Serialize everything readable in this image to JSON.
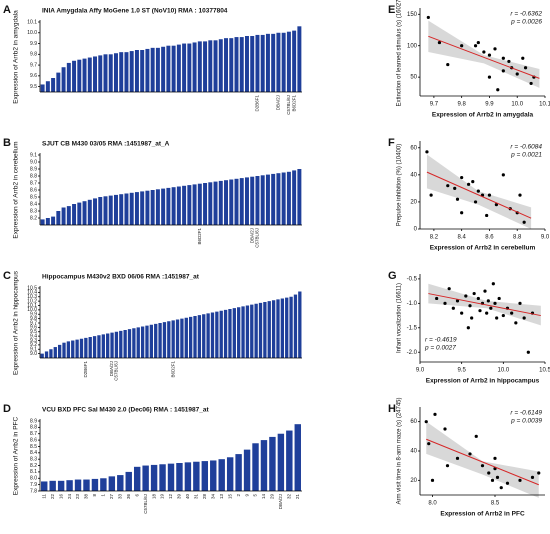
{
  "chart_data": [
    {
      "type": "bar",
      "label": "A",
      "title": "INIA Amygdala Affy MoGene 1.0 ST (NoV10) RMA : 10377804",
      "ylabel": "Expression of Arrb2 in amygdala",
      "color": "#1f3f9a",
      "categories": [
        null,
        null,
        null,
        null,
        null,
        null,
        null,
        null,
        null,
        null,
        null,
        null,
        null,
        null,
        null,
        null,
        null,
        null,
        null,
        null,
        null,
        null,
        null,
        null,
        null,
        null,
        null,
        null,
        null,
        null,
        null,
        null,
        null,
        null,
        null,
        null,
        null,
        null,
        null,
        null,
        null,
        "D2B6F1",
        null,
        null,
        null,
        "DBA/2J",
        null,
        "C57BL/6J",
        "B6D2F1",
        null
      ],
      "values": [
        9.52,
        9.55,
        9.58,
        9.63,
        9.68,
        9.72,
        9.74,
        9.75,
        9.76,
        9.77,
        9.78,
        9.79,
        9.8,
        9.8,
        9.81,
        9.82,
        9.82,
        9.83,
        9.84,
        9.84,
        9.85,
        9.86,
        9.86,
        9.87,
        9.88,
        9.88,
        9.89,
        9.9,
        9.9,
        9.91,
        9.92,
        9.92,
        9.93,
        9.93,
        9.94,
        9.95,
        9.95,
        9.96,
        9.96,
        9.97,
        9.97,
        9.98,
        9.98,
        9.99,
        9.99,
        10.0,
        10.0,
        10.01,
        10.02,
        10.06
      ],
      "ylim": [
        9.45,
        10.1
      ],
      "yticks": [
        9.5,
        9.6,
        9.7,
        9.8,
        9.9,
        {
          "value": 10,
          "label": "10.0"
        },
        10.1
      ]
    },
    {
      "type": "bar",
      "label": "B",
      "title": "SJUT CB M430 03/05 RMA :1451987_at_A",
      "ylabel": "Expression of Arrb2 in cerebellum",
      "color": "#1f3f9a",
      "categories": [
        null,
        null,
        null,
        null,
        null,
        null,
        null,
        null,
        null,
        null,
        null,
        null,
        null,
        null,
        null,
        null,
        null,
        null,
        null,
        null,
        null,
        null,
        null,
        null,
        null,
        null,
        null,
        null,
        null,
        null,
        "B6D2F1",
        null,
        null,
        null,
        null,
        null,
        null,
        null,
        null,
        null,
        "DBA/2J",
        "C57BL/6J",
        null,
        null,
        null,
        null,
        null,
        null,
        null,
        null
      ],
      "values": [
        8.18,
        8.2,
        8.22,
        8.3,
        8.35,
        8.37,
        8.4,
        8.42,
        8.44,
        8.46,
        8.48,
        8.5,
        8.51,
        8.52,
        8.53,
        8.54,
        8.55,
        8.56,
        8.57,
        8.58,
        8.59,
        8.6,
        8.61,
        8.62,
        8.63,
        8.64,
        8.65,
        8.66,
        8.67,
        8.68,
        8.69,
        8.7,
        8.71,
        8.72,
        8.73,
        8.74,
        8.75,
        8.76,
        8.77,
        8.78,
        8.79,
        8.8,
        8.81,
        8.82,
        8.83,
        8.84,
        8.85,
        8.86,
        8.88,
        8.9
      ],
      "ylim": [
        8.1,
        9.1
      ],
      "yticks": [
        8.2,
        8.3,
        8.4,
        8.5,
        8.6,
        8.7,
        8.8,
        8.9,
        {
          "value": 9,
          "label": "9.0"
        },
        9.1
      ]
    },
    {
      "type": "bar",
      "label": "C",
      "title": "Hippocampus M430v2 BXD 06/06 RMA :1451987_at",
      "ylabel": "Expression of Arrb2 in hippocampus",
      "color": "#1f3f9a",
      "categories": [
        null,
        null,
        null,
        null,
        null,
        null,
        null,
        null,
        null,
        null,
        "D2B6F1",
        null,
        null,
        null,
        null,
        null,
        "DBA/2J",
        "C57BL/6J",
        null,
        null,
        null,
        null,
        null,
        null,
        null,
        null,
        null,
        null,
        null,
        null,
        "B6D2F1",
        null,
        null,
        null,
        null,
        null,
        null,
        null,
        null,
        null,
        null,
        null,
        null,
        null,
        null,
        null,
        null,
        null,
        null,
        null,
        null,
        null,
        null,
        null,
        null,
        null,
        null,
        null,
        null,
        null
      ],
      "values": [
        9.0,
        9.05,
        9.1,
        9.15,
        9.2,
        9.25,
        9.28,
        9.3,
        9.32,
        9.34,
        9.36,
        9.38,
        9.4,
        9.42,
        9.44,
        9.46,
        9.48,
        9.5,
        9.52,
        9.54,
        9.56,
        9.58,
        9.6,
        9.62,
        9.64,
        9.66,
        9.68,
        9.7,
        9.72,
        9.74,
        9.76,
        9.78,
        9.8,
        9.82,
        9.84,
        9.86,
        9.88,
        9.9,
        9.92,
        9.94,
        9.96,
        9.98,
        10.0,
        10.02,
        10.04,
        10.06,
        10.08,
        10.1,
        10.12,
        10.14,
        10.16,
        10.18,
        10.2,
        10.22,
        10.24,
        10.26,
        10.28,
        10.3,
        10.35,
        10.42
      ],
      "ylim": [
        8.9,
        10.5
      ],
      "yticks": [
        {
          "value": 9,
          "label": "9.0"
        },
        9.1,
        9.2,
        9.3,
        9.4,
        9.5,
        9.6,
        9.7,
        9.8,
        9.9,
        {
          "value": 10,
          "label": "10.0"
        },
        10.1,
        10.2,
        10.3,
        10.4,
        10.5
      ]
    },
    {
      "type": "bar",
      "label": "D",
      "title": "VCU BXD PFC Sal M430 2.0 (Dec06) RMA : 1451987_at",
      "ylabel": "Expression of Arrb2 in PFC",
      "color": "#1f3f9a",
      "categories": [
        "11",
        "22",
        "16",
        "24",
        "23",
        "38",
        "8",
        "1",
        "27",
        "33",
        "36",
        "6",
        "C57BL/6J",
        "18",
        "19",
        "12",
        "39",
        "40",
        "31",
        "28",
        "34",
        "13",
        "15",
        "2",
        "9",
        "5",
        "14",
        "29",
        "DBA/2J",
        "32",
        "21"
      ],
      "values": [
        7.95,
        7.96,
        7.96,
        7.97,
        7.98,
        7.98,
        7.99,
        8.0,
        8.03,
        8.05,
        8.1,
        8.18,
        8.2,
        8.21,
        8.22,
        8.23,
        8.24,
        8.25,
        8.26,
        8.27,
        8.28,
        8.3,
        8.33,
        8.38,
        8.45,
        8.55,
        8.6,
        8.65,
        8.7,
        8.75,
        8.85
      ],
      "ylim": [
        7.8,
        8.9
      ],
      "yticks": [
        7.8,
        7.9,
        {
          "value": 8,
          "label": "8.0"
        },
        8.1,
        8.2,
        8.3,
        8.4,
        8.5,
        8.6,
        8.7,
        8.8,
        8.9
      ]
    },
    {
      "type": "scatter",
      "label": "E",
      "xlabel": "Expression of Arrb2 in amygdala",
      "ylabel": "Extinction of learned stimulus (s) (16027)",
      "r": "r = -0.6362",
      "p": "p = 0.0026",
      "annotation_position": "top-right",
      "x": [
        9.68,
        9.72,
        9.75,
        9.8,
        9.85,
        9.86,
        9.88,
        9.9,
        9.9,
        9.92,
        9.95,
        9.95,
        9.97,
        9.98,
        10.0,
        10.02,
        10.03,
        10.05,
        10.06,
        9.93
      ],
      "y": [
        145,
        105,
        70,
        100,
        100,
        105,
        90,
        85,
        50,
        95,
        80,
        60,
        75,
        65,
        55,
        80,
        65,
        40,
        50,
        30
      ],
      "fit": {
        "x": [
          9.68,
          10.08
        ],
        "y": [
          115,
          48
        ]
      },
      "band": {
        "x": [
          9.68,
          9.88,
          10.08
        ],
        "lower": [
          90,
          72,
          33
        ],
        "upper": [
          140,
          85,
          63
        ]
      },
      "xlim": [
        9.65,
        10.1
      ],
      "xticks": [
        9.7,
        9.8,
        9.9,
        {
          "value": 10,
          "label": "10.0"
        },
        10.1
      ],
      "ylim": [
        20,
        160
      ],
      "yticks": [
        50,
        100,
        150
      ]
    },
    {
      "type": "scatter",
      "label": "F",
      "xlabel": "Expression of Arrb2 in cerebellum",
      "ylabel": "Prepulse inhibition (%) (10400)",
      "r": "r = -0.6084",
      "p": "p = 0.0021",
      "annotation_position": "top-right",
      "x": [
        8.15,
        8.18,
        8.3,
        8.35,
        8.37,
        8.4,
        8.45,
        8.48,
        8.5,
        8.52,
        8.55,
        8.58,
        8.6,
        8.65,
        8.7,
        8.75,
        8.8,
        8.82,
        8.85,
        8.4
      ],
      "y": [
        57,
        25,
        32,
        30,
        22,
        38,
        33,
        35,
        20,
        28,
        25,
        10,
        25,
        18,
        40,
        15,
        12,
        25,
        5,
        12
      ],
      "fit": {
        "x": [
          8.15,
          8.9
        ],
        "y": [
          42,
          8
        ]
      },
      "band": {
        "x": [
          8.15,
          8.52,
          8.9
        ],
        "lower": [
          30,
          18,
          0
        ],
        "upper": [
          55,
          28,
          16
        ]
      },
      "xlim": [
        8.1,
        9.0
      ],
      "xticks": [
        8.2,
        8.4,
        8.6,
        8.8,
        {
          "value": 9,
          "label": "9.0"
        }
      ],
      "ylim": [
        0,
        65
      ],
      "yticks": [
        0,
        20,
        40,
        60
      ]
    },
    {
      "type": "scatter",
      "label": "G",
      "xlabel": "Expression of Arrb2 in hippocampus",
      "ylabel": "Infant vocalization (16611)",
      "r": "r = -0.4619",
      "p": "p = 0.0027",
      "annotation_position": "bottom-left",
      "x": [
        9.2,
        9.3,
        9.35,
        9.4,
        9.45,
        9.5,
        9.55,
        9.6,
        9.62,
        9.65,
        9.7,
        9.72,
        9.75,
        9.78,
        9.8,
        9.82,
        9.85,
        9.88,
        9.9,
        9.92,
        9.95,
        10.0,
        10.05,
        10.1,
        10.15,
        10.2,
        10.25,
        10.3,
        10.35,
        9.58
      ],
      "y": [
        -0.9,
        -1.0,
        -0.7,
        -1.1,
        -0.95,
        -1.2,
        -0.85,
        -1.05,
        -1.3,
        -0.8,
        -0.9,
        -1.15,
        -1.0,
        -0.75,
        -1.2,
        -0.95,
        -1.1,
        -0.6,
        -1.0,
        -1.3,
        -0.9,
        -1.25,
        -1.1,
        -1.2,
        -1.4,
        -1.0,
        -1.3,
        -2.0,
        -1.2,
        -1.5
      ],
      "fit": {
        "x": [
          9.1,
          10.45
        ],
        "y": [
          -0.8,
          -1.25
        ]
      },
      "band": {
        "x": [
          9.1,
          9.8,
          10.45
        ],
        "lower": [
          -1.0,
          -1.1,
          -1.45
        ],
        "upper": [
          -0.6,
          -0.95,
          -1.05
        ]
      },
      "xlim": [
        9.0,
        10.5
      ],
      "xticks": [
        {
          "value": 9,
          "label": "9.0"
        },
        9.5,
        {
          "value": 10,
          "label": "10.0"
        },
        10.5
      ],
      "ylim": [
        -2.2,
        -0.4
      ],
      "yticks": [
        {
          "value": -2,
          "label": "-2.0"
        },
        -1.5,
        {
          "value": -1,
          "label": "-1.0"
        },
        -0.5
      ]
    },
    {
      "type": "scatter",
      "label": "H",
      "xlabel": "Expression of Arrb2 in PFC",
      "ylabel": "Arm visit time in 8-arm maze (s) (24745)",
      "r": "r = -0.6149",
      "p": "p = 0.0039",
      "annotation_position": "top-right",
      "x": [
        7.95,
        7.97,
        8.0,
        8.02,
        8.1,
        8.12,
        8.2,
        8.35,
        8.4,
        8.45,
        8.48,
        8.5,
        8.52,
        8.55,
        8.6,
        8.7,
        8.8,
        8.85,
        8.5,
        8.3
      ],
      "y": [
        60,
        45,
        20,
        65,
        55,
        30,
        35,
        50,
        30,
        25,
        20,
        28,
        22,
        15,
        18,
        20,
        22,
        25,
        35,
        38
      ],
      "fit": {
        "x": [
          7.95,
          8.85
        ],
        "y": [
          48,
          17
        ]
      },
      "band": {
        "x": [
          7.95,
          8.4,
          8.85
        ],
        "lower": [
          38,
          24,
          8
        ],
        "upper": [
          60,
          33,
          26
        ]
      },
      "xlim": [
        7.9,
        8.9
      ],
      "xticks": [
        {
          "value": 8,
          "label": "8.0"
        },
        8.5
      ],
      "ylim": [
        10,
        70
      ],
      "yticks": [
        20,
        40,
        60
      ]
    }
  ]
}
